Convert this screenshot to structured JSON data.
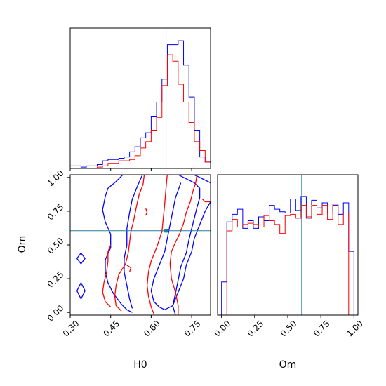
{
  "chart_data": [
    {
      "type": "histogram",
      "panel": "H0 marginal",
      "xlim": [
        0.3,
        0.82
      ],
      "ylim": [
        0,
        1
      ],
      "bins": [
        0.3,
        0.32,
        0.34,
        0.36,
        0.38,
        0.4,
        0.42,
        0.44,
        0.46,
        0.48,
        0.5,
        0.52,
        0.54,
        0.56,
        0.58,
        0.6,
        0.62,
        0.64,
        0.66,
        0.68,
        0.7,
        0.72,
        0.74,
        0.76,
        0.78,
        0.8,
        0.82
      ],
      "series": [
        {
          "color": "#0000ff",
          "values": [
            0.02,
            0.02,
            0.01,
            0.02,
            0.02,
            0.03,
            0.06,
            0.07,
            0.07,
            0.08,
            0.09,
            0.13,
            0.17,
            0.24,
            0.28,
            0.41,
            0.52,
            0.7,
            0.97,
            0.97,
            1.0,
            0.81,
            0.56,
            0.3,
            0.09,
            0.05
          ]
        },
        {
          "color": "#ff0000",
          "values": [
            0.0,
            0.0,
            0.0,
            0.0,
            0.0,
            0.01,
            0.02,
            0.04,
            0.04,
            0.06,
            0.06,
            0.07,
            0.1,
            0.16,
            0.21,
            0.3,
            0.4,
            0.65,
            0.89,
            0.84,
            0.66,
            0.52,
            0.36,
            0.21,
            0.14,
            0.05
          ]
        }
      ],
      "truth": 0.655
    },
    {
      "type": "contour",
      "panel": "H0 vs Om",
      "xlabel": "H0",
      "ylabel": "Om",
      "xlim": [
        0.3,
        0.82
      ],
      "ylim": [
        -0.02,
        1.02
      ],
      "xticks": [
        "0.30",
        "0.45",
        "0.60",
        "0.75"
      ],
      "xtick_values": [
        0.3,
        0.45,
        0.6,
        0.75
      ],
      "yticks": [
        "0.00",
        "0.25",
        "0.50",
        "0.75",
        "1.00"
      ],
      "ytick_values": [
        0.0,
        0.25,
        0.5,
        0.75,
        1.0
      ],
      "truth": [
        0.655,
        0.605
      ],
      "series": [
        {
          "color": "#0000ff",
          "contours": [
            [
              [
                0.5,
                1.03
              ],
              [
                0.47,
                0.97
              ],
              [
                0.44,
                0.92
              ],
              [
                0.43,
                0.86
              ],
              [
                0.42,
                0.76
              ],
              [
                0.43,
                0.67
              ],
              [
                0.45,
                0.58
              ],
              [
                0.45,
                0.48
              ],
              [
                0.43,
                0.39
              ],
              [
                0.43,
                0.3
              ],
              [
                0.44,
                0.22
              ],
              [
                0.46,
                0.14
              ],
              [
                0.49,
                0.06
              ],
              [
                0.51,
                0.02
              ],
              [
                0.53,
                0.0
              ]
            ],
            [
              [
                0.57,
                1.03
              ],
              [
                0.55,
                0.94
              ],
              [
                0.53,
                0.84
              ],
              [
                0.52,
                0.74
              ],
              [
                0.51,
                0.62
              ],
              [
                0.51,
                0.5
              ],
              [
                0.5,
                0.4
              ],
              [
                0.5,
                0.3
              ],
              [
                0.51,
                0.2
              ],
              [
                0.52,
                0.1
              ],
              [
                0.53,
                0.03
              ]
            ],
            [
              [
                0.71,
                0.96
              ],
              [
                0.69,
                0.85
              ],
              [
                0.68,
                0.75
              ],
              [
                0.67,
                0.65
              ],
              [
                0.66,
                0.55
              ],
              [
                0.65,
                0.45
              ],
              [
                0.63,
                0.35
              ],
              [
                0.61,
                0.25
              ],
              [
                0.6,
                0.16
              ],
              [
                0.61,
                0.08
              ],
              [
                0.63,
                0.04
              ],
              [
                0.65,
                0.02
              ],
              [
                0.68,
                0.05
              ],
              [
                0.7,
                0.15
              ],
              [
                0.72,
                0.25
              ],
              [
                0.73,
                0.35
              ],
              [
                0.75,
                0.45
              ],
              [
                0.76,
                0.55
              ],
              [
                0.78,
                0.65
              ],
              [
                0.8,
                0.75
              ],
              [
                0.82,
                0.82
              ]
            ],
            [
              [
                0.7,
                1.02
              ],
              [
                0.72,
                1.0
              ],
              [
                0.74,
                0.98
              ],
              [
                0.76,
                0.96
              ],
              [
                0.78,
                0.92
              ],
              [
                0.78,
                0.85
              ],
              [
                0.77,
                0.78
              ],
              [
                0.76,
                0.7
              ],
              [
                0.75,
                0.62
              ],
              [
                0.74,
                0.54
              ],
              [
                0.73,
                0.44
              ],
              [
                0.71,
                0.34
              ],
              [
                0.7,
                0.24
              ],
              [
                0.69,
                0.14
              ],
              [
                0.68,
                0.05
              ],
              [
                0.69,
                -0.02
              ]
            ],
            [
              [
                0.745,
                1.03
              ],
              [
                0.77,
                1.01
              ],
              [
                0.8,
                0.98
              ],
              [
                0.82,
                0.96
              ]
            ],
            [
              [
                0.34,
                0.22
              ],
              [
                0.355,
                0.16
              ],
              [
                0.34,
                0.1
              ],
              [
                0.325,
                0.16
              ],
              [
                0.34,
                0.22
              ]
            ],
            [
              [
                0.34,
                0.44
              ],
              [
                0.355,
                0.4
              ],
              [
                0.34,
                0.36
              ],
              [
                0.325,
                0.4
              ],
              [
                0.34,
                0.44
              ]
            ]
          ]
        },
        {
          "color": "#ff0000",
          "contours": [
            [
              [
                0.575,
                1.03
              ],
              [
                0.57,
                0.95
              ],
              [
                0.555,
                0.87
              ],
              [
                0.545,
                0.78
              ],
              [
                0.535,
                0.68
              ],
              [
                0.525,
                0.6
              ],
              [
                0.52,
                0.52
              ],
              [
                0.515,
                0.44
              ],
              [
                0.505,
                0.36
              ],
              [
                0.48,
                0.28
              ],
              [
                0.47,
                0.2
              ],
              [
                0.465,
                0.12
              ],
              [
                0.47,
                0.05
              ],
              [
                0.49,
                0.01
              ]
            ],
            [
              [
                0.45,
                0.5
              ],
              [
                0.44,
                0.45
              ],
              [
                0.44,
                0.38
              ],
              [
                0.435,
                0.3
              ],
              [
                0.425,
                0.22
              ],
              [
                0.42,
                0.15
              ],
              [
                0.43,
                0.08
              ],
              [
                0.45,
                0.04
              ]
            ],
            [
              [
                0.77,
                1.03
              ],
              [
                0.765,
                0.96
              ],
              [
                0.755,
                0.9
              ],
              [
                0.745,
                0.82
              ],
              [
                0.73,
                0.74
              ],
              [
                0.72,
                0.66
              ],
              [
                0.705,
                0.58
              ],
              [
                0.69,
                0.52
              ],
              [
                0.675,
                0.45
              ],
              [
                0.67,
                0.36
              ],
              [
                0.675,
                0.25
              ],
              [
                0.69,
                0.15
              ],
              [
                0.7,
                0.05
              ],
              [
                0.7,
                -0.02
              ]
            ],
            [
              [
                0.66,
                1.03
              ],
              [
                0.655,
                0.92
              ],
              [
                0.65,
                0.8
              ],
              [
                0.645,
                0.7
              ],
              [
                0.64,
                0.6
              ],
              [
                0.62,
                0.48
              ],
              [
                0.6,
                0.38
              ],
              [
                0.59,
                0.3
              ],
              [
                0.585,
                0.2
              ],
              [
                0.59,
                0.12
              ],
              [
                0.6,
                0.04
              ],
              [
                0.61,
                -0.01
              ]
            ],
            [
              [
                0.79,
                0.84
              ],
              [
                0.8,
                0.82
              ],
              [
                0.82,
                0.82
              ]
            ],
            [
              [
                0.58,
                0.77
              ],
              [
                0.585,
                0.74
              ],
              [
                0.58,
                0.72
              ]
            ],
            [
              [
                0.51,
                0.35
              ],
              [
                0.525,
                0.33
              ],
              [
                0.52,
                0.3
              ]
            ]
          ]
        }
      ]
    },
    {
      "type": "histogram",
      "panel": "Om marginal",
      "xlabel": "Om",
      "xlim": [
        -0.03,
        1.03
      ],
      "ylim": [
        0,
        1
      ],
      "xticks": [
        "0.00",
        "0.25",
        "0.50",
        "0.75",
        "1.00"
      ],
      "xtick_values": [
        0.0,
        0.25,
        0.5,
        0.75,
        1.0
      ],
      "bins": [
        0.0,
        0.04,
        0.08,
        0.12,
        0.16,
        0.2,
        0.24,
        0.28,
        0.32,
        0.36,
        0.4,
        0.44,
        0.48,
        0.52,
        0.56,
        0.6,
        0.64,
        0.68,
        0.72,
        0.76,
        0.8,
        0.84,
        0.88,
        0.92,
        0.96,
        1.0
      ],
      "series": [
        {
          "color": "#0000ff",
          "values": [
            0.26,
            0.73,
            0.79,
            0.83,
            0.68,
            0.74,
            0.68,
            0.77,
            0.74,
            0.86,
            0.83,
            0.81,
            0.8,
            0.91,
            0.82,
            0.93,
            0.76,
            0.9,
            0.84,
            0.88,
            0.8,
            0.86,
            0.79,
            0.88,
            0.5
          ]
        },
        {
          "color": "#ff0000",
          "values": [
            0.0,
            0.66,
            0.75,
            0.69,
            0.71,
            0.72,
            0.71,
            0.69,
            0.78,
            0.74,
            0.71,
            0.64,
            0.78,
            0.79,
            0.76,
            0.86,
            0.77,
            0.86,
            0.79,
            0.86,
            0.75,
            0.87,
            0.71,
            0.8,
            0.0
          ]
        }
      ],
      "truth": 0.605
    }
  ],
  "truth_line_color": "#2c7a9e"
}
